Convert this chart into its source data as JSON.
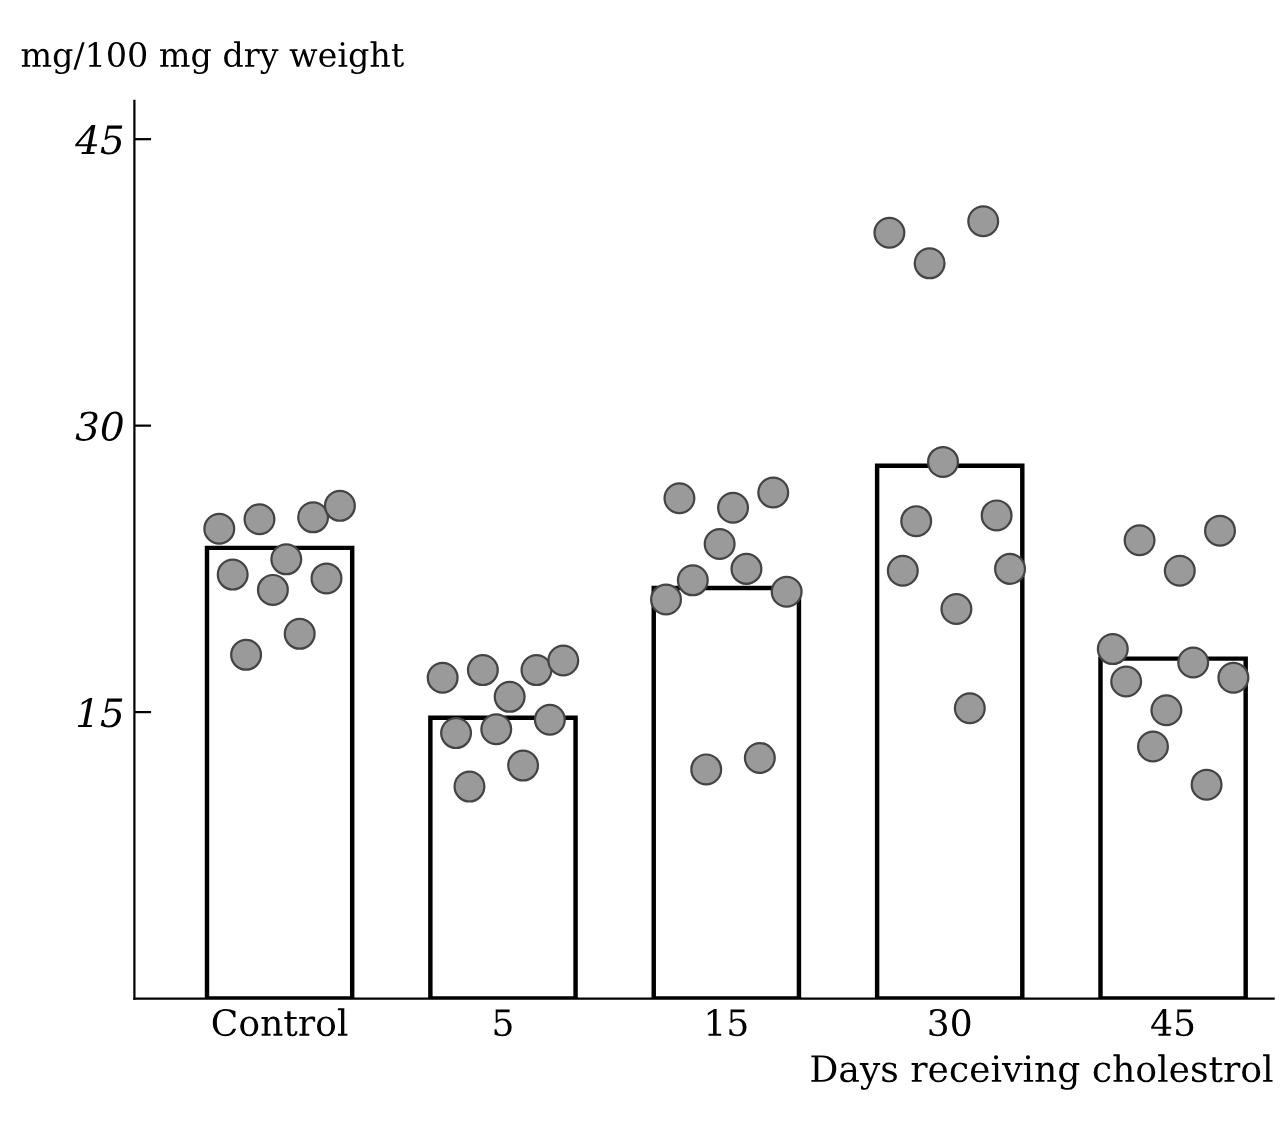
{
  "chart_data": {
    "type": "bar",
    "ylabel": "mg/100 mg dry weight",
    "xlabel": "Days receiving cholestrol",
    "categories": [
      "Control",
      "5",
      "15",
      "30",
      "45"
    ],
    "ylim": [
      0,
      47
    ],
    "yticks": [
      15,
      30,
      45
    ],
    "grid": false,
    "legend": false,
    "marker": "circle",
    "series": [
      {
        "color": "#ffffff",
        "values": [
          23.6,
          14.7,
          21.5,
          27.9,
          17.8
        ]
      },
      {
        "type": "scatter",
        "color": "#9a9a9a",
        "values": [
          24.6,
          16.8,
          20.9,
          40.1,
          18.3
        ]
      },
      {
        "type": "scatter",
        "color": "#9a9a9a",
        "values": [
          22.2,
          13.9,
          26.2,
          22.4,
          16.6
        ]
      },
      {
        "type": "scatter",
        "color": "#9a9a9a",
        "values": [
          18.0,
          11.1,
          21.9,
          25.0,
          24.0
        ]
      },
      {
        "type": "scatter",
        "color": "#9a9a9a",
        "values": [
          25.1,
          17.2,
          12.0,
          38.5,
          13.2
        ]
      },
      {
        "type": "scatter",
        "color": "#9a9a9a",
        "values": [
          21.4,
          14.1,
          23.8,
          28.1,
          15.1
        ]
      },
      {
        "type": "scatter",
        "color": "#9a9a9a",
        "values": [
          23.0,
          15.8,
          25.7,
          20.4,
          22.4
        ]
      },
      {
        "type": "scatter",
        "color": "#9a9a9a",
        "values": [
          19.1,
          12.2,
          22.5,
          15.2,
          17.6
        ]
      },
      {
        "type": "scatter",
        "color": "#9a9a9a",
        "values": [
          25.2,
          17.2,
          12.6,
          40.7,
          11.2
        ]
      },
      {
        "type": "scatter",
        "color": "#9a9a9a",
        "values": [
          22.0,
          14.6,
          26.5,
          25.3,
          24.5
        ]
      },
      {
        "type": "scatter",
        "color": "#9a9a9a",
        "values": [
          25.8,
          17.7,
          21.3,
          22.5,
          16.8
        ]
      }
    ]
  }
}
